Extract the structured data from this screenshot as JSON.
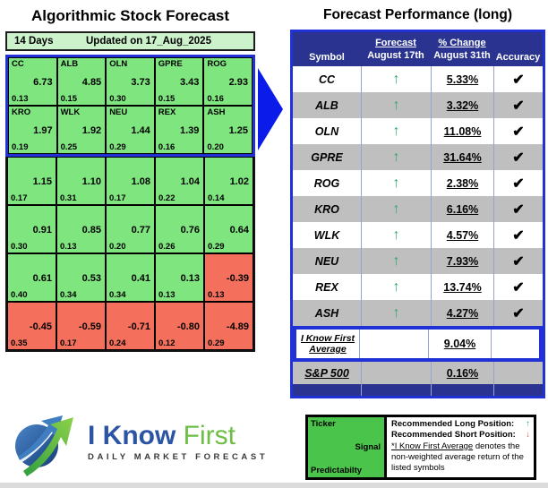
{
  "colors": {
    "cell_green": "#7FE57F",
    "cell_red": "#F4705C",
    "period_bar_green": "#CCF2CC",
    "navy_header": "#2A3490",
    "row_gray": "#BFBFBF",
    "highlight_blue_border": "#2031D6",
    "flow_arrow_blue": "#0A1BEA",
    "up_arrow_green": "#2FA968",
    "down_arrow_red": "#E0524A",
    "legend_green": "#4BC44B",
    "logo_blue": "#2B55A4",
    "logo_green": "#6CBE45"
  },
  "icons": {
    "up_arrow": "↑",
    "down_arrow": "↓",
    "check": "✔"
  },
  "left_panel": {
    "title": "Algorithmic Stock Forecast",
    "period": "14 Days",
    "updated": "Updated on 17_Aug_2025",
    "rows": [
      {
        "highlight": true,
        "cells": [
          {
            "ticker": "CC",
            "signal": "6.73",
            "predictability": "0.13",
            "state": "positive"
          },
          {
            "ticker": "ALB",
            "signal": "4.85",
            "predictability": "0.15",
            "state": "positive"
          },
          {
            "ticker": "OLN",
            "signal": "3.73",
            "predictability": "0.30",
            "state": "positive"
          },
          {
            "ticker": "GPRE",
            "signal": "3.43",
            "predictability": "0.15",
            "state": "positive"
          },
          {
            "ticker": "ROG",
            "signal": "2.93",
            "predictability": "0.16",
            "state": "positive"
          }
        ]
      },
      {
        "highlight": true,
        "cells": [
          {
            "ticker": "KRO",
            "signal": "1.97",
            "predictability": "0.19",
            "state": "positive"
          },
          {
            "ticker": "WLK",
            "signal": "1.92",
            "predictability": "0.25",
            "state": "positive"
          },
          {
            "ticker": "NEU",
            "signal": "1.44",
            "predictability": "0.29",
            "state": "positive"
          },
          {
            "ticker": "REX",
            "signal": "1.39",
            "predictability": "0.16",
            "state": "positive"
          },
          {
            "ticker": "ASH",
            "signal": "1.25",
            "predictability": "0.20",
            "state": "positive"
          }
        ]
      },
      {
        "highlight": false,
        "cells": [
          {
            "ticker": "",
            "signal": "1.15",
            "predictability": "0.17",
            "state": "positive"
          },
          {
            "ticker": "",
            "signal": "1.10",
            "predictability": "0.31",
            "state": "positive"
          },
          {
            "ticker": "",
            "signal": "1.08",
            "predictability": "0.17",
            "state": "positive"
          },
          {
            "ticker": "",
            "signal": "1.04",
            "predictability": "0.22",
            "state": "positive"
          },
          {
            "ticker": "",
            "signal": "1.02",
            "predictability": "0.14",
            "state": "positive"
          }
        ]
      },
      {
        "highlight": false,
        "cells": [
          {
            "ticker": "",
            "signal": "0.91",
            "predictability": "0.30",
            "state": "positive"
          },
          {
            "ticker": "",
            "signal": "0.85",
            "predictability": "0.13",
            "state": "positive"
          },
          {
            "ticker": "",
            "signal": "0.77",
            "predictability": "0.20",
            "state": "positive"
          },
          {
            "ticker": "",
            "signal": "0.76",
            "predictability": "0.26",
            "state": "positive"
          },
          {
            "ticker": "",
            "signal": "0.64",
            "predictability": "0.29",
            "state": "positive"
          }
        ]
      },
      {
        "highlight": false,
        "cells": [
          {
            "ticker": "",
            "signal": "0.61",
            "predictability": "0.40",
            "state": "positive"
          },
          {
            "ticker": "",
            "signal": "0.53",
            "predictability": "0.34",
            "state": "positive"
          },
          {
            "ticker": "",
            "signal": "0.41",
            "predictability": "0.34",
            "state": "positive"
          },
          {
            "ticker": "",
            "signal": "0.13",
            "predictability": "0.13",
            "state": "positive"
          },
          {
            "ticker": "",
            "signal": "-0.39",
            "predictability": "0.13",
            "state": "negative"
          }
        ]
      },
      {
        "highlight": false,
        "cells": [
          {
            "ticker": "",
            "signal": "-0.45",
            "predictability": "0.35",
            "state": "negative"
          },
          {
            "ticker": "",
            "signal": "-0.59",
            "predictability": "0.17",
            "state": "negative"
          },
          {
            "ticker": "",
            "signal": "-0.71",
            "predictability": "0.24",
            "state": "negative"
          },
          {
            "ticker": "",
            "signal": "-0.80",
            "predictability": "0.12",
            "state": "negative"
          },
          {
            "ticker": "",
            "signal": "-4.89",
            "predictability": "0.29",
            "state": "negative"
          }
        ]
      }
    ]
  },
  "right_panel": {
    "title": "Forecast Performance (long)",
    "header": {
      "symbol": "Symbol",
      "forecast_label": "Forecast",
      "forecast_date": "August 17th",
      "change_label": "% Change",
      "change_date": "August 31th",
      "accuracy": "Accuracy"
    },
    "rows": [
      {
        "symbol": "CC",
        "direction": "up",
        "change": "5.33%",
        "correct": true
      },
      {
        "symbol": "ALB",
        "direction": "up",
        "change": "3.32%",
        "correct": true
      },
      {
        "symbol": "OLN",
        "direction": "up",
        "change": "11.08%",
        "correct": true
      },
      {
        "symbol": "GPRE",
        "direction": "up",
        "change": "31.64%",
        "correct": true
      },
      {
        "symbol": "ROG",
        "direction": "up",
        "change": "2.38%",
        "correct": true
      },
      {
        "symbol": "KRO",
        "direction": "up",
        "change": "6.16%",
        "correct": true
      },
      {
        "symbol": "WLK",
        "direction": "up",
        "change": "4.57%",
        "correct": true
      },
      {
        "symbol": "NEU",
        "direction": "up",
        "change": "7.93%",
        "correct": true
      },
      {
        "symbol": "REX",
        "direction": "up",
        "change": "13.74%",
        "correct": true
      },
      {
        "symbol": "ASH",
        "direction": "up",
        "change": "4.27%",
        "correct": true
      }
    ],
    "average": {
      "line1": "I Know First",
      "line2": "Average",
      "value": "9.04%"
    },
    "benchmark": {
      "label": "S&P 500",
      "value": "0.16%"
    }
  },
  "logo": {
    "word1": "I Know",
    "word2": "First",
    "tagline": "DAILY MARKET FORECAST"
  },
  "legend": {
    "ticker": "Ticker",
    "signal": "Signal",
    "predictability": "Predictabilty",
    "long_label": "Recommended Long Position:",
    "short_label": "Recommended Short Position:",
    "note_underline": "*I Know First Average",
    "note_rest": " denotes the non-weighted average return of the listed symbols"
  },
  "chart_data": [
    {
      "type": "heatmap",
      "title": "Algorithmic Stock Forecast",
      "subtitle": "14 Days, Updated on 17_Aug_2025",
      "columns": 5,
      "legend": "green = positive signal, red = negative signal; top number = signal, bottom number = predictability",
      "cells": [
        {
          "ticker": "CC",
          "signal": 6.73,
          "predictability": 0.13
        },
        {
          "ticker": "ALB",
          "signal": 4.85,
          "predictability": 0.15
        },
        {
          "ticker": "OLN",
          "signal": 3.73,
          "predictability": 0.3
        },
        {
          "ticker": "GPRE",
          "signal": 3.43,
          "predictability": 0.15
        },
        {
          "ticker": "ROG",
          "signal": 2.93,
          "predictability": 0.16
        },
        {
          "ticker": "KRO",
          "signal": 1.97,
          "predictability": 0.19
        },
        {
          "ticker": "WLK",
          "signal": 1.92,
          "predictability": 0.25
        },
        {
          "ticker": "NEU",
          "signal": 1.44,
          "predictability": 0.29
        },
        {
          "ticker": "REX",
          "signal": 1.39,
          "predictability": 0.16
        },
        {
          "ticker": "ASH",
          "signal": 1.25,
          "predictability": 0.2
        },
        {
          "ticker": "",
          "signal": 1.15,
          "predictability": 0.17
        },
        {
          "ticker": "",
          "signal": 1.1,
          "predictability": 0.31
        },
        {
          "ticker": "",
          "signal": 1.08,
          "predictability": 0.17
        },
        {
          "ticker": "",
          "signal": 1.04,
          "predictability": 0.22
        },
        {
          "ticker": "",
          "signal": 1.02,
          "predictability": 0.14
        },
        {
          "ticker": "",
          "signal": 0.91,
          "predictability": 0.3
        },
        {
          "ticker": "",
          "signal": 0.85,
          "predictability": 0.13
        },
        {
          "ticker": "",
          "signal": 0.77,
          "predictability": 0.2
        },
        {
          "ticker": "",
          "signal": 0.76,
          "predictability": 0.26
        },
        {
          "ticker": "",
          "signal": 0.64,
          "predictability": 0.29
        },
        {
          "ticker": "",
          "signal": 0.61,
          "predictability": 0.4
        },
        {
          "ticker": "",
          "signal": 0.53,
          "predictability": 0.34
        },
        {
          "ticker": "",
          "signal": 0.41,
          "predictability": 0.34
        },
        {
          "ticker": "",
          "signal": 0.13,
          "predictability": 0.13
        },
        {
          "ticker": "",
          "signal": -0.39,
          "predictability": 0.13
        },
        {
          "ticker": "",
          "signal": -0.45,
          "predictability": 0.35
        },
        {
          "ticker": "",
          "signal": -0.59,
          "predictability": 0.17
        },
        {
          "ticker": "",
          "signal": -0.71,
          "predictability": 0.24
        },
        {
          "ticker": "",
          "signal": -0.8,
          "predictability": 0.12
        },
        {
          "ticker": "",
          "signal": -4.89,
          "predictability": 0.29
        }
      ]
    },
    {
      "type": "table",
      "title": "Forecast Performance (long)",
      "columns": [
        "Symbol",
        "Forecast August 17th",
        "% Change August 31th",
        "Accuracy"
      ],
      "rows": [
        [
          "CC",
          "up",
          "5.33%",
          "correct"
        ],
        [
          "ALB",
          "up",
          "3.32%",
          "correct"
        ],
        [
          "OLN",
          "up",
          "11.08%",
          "correct"
        ],
        [
          "GPRE",
          "up",
          "31.64%",
          "correct"
        ],
        [
          "ROG",
          "up",
          "2.38%",
          "correct"
        ],
        [
          "KRO",
          "up",
          "6.16%",
          "correct"
        ],
        [
          "WLK",
          "up",
          "4.57%",
          "correct"
        ],
        [
          "NEU",
          "up",
          "7.93%",
          "correct"
        ],
        [
          "REX",
          "up",
          "13.74%",
          "correct"
        ],
        [
          "ASH",
          "up",
          "4.27%",
          "correct"
        ],
        [
          "I Know First Average",
          "",
          "9.04%",
          ""
        ],
        [
          "S&P 500",
          "",
          "0.16%",
          ""
        ]
      ]
    }
  ]
}
